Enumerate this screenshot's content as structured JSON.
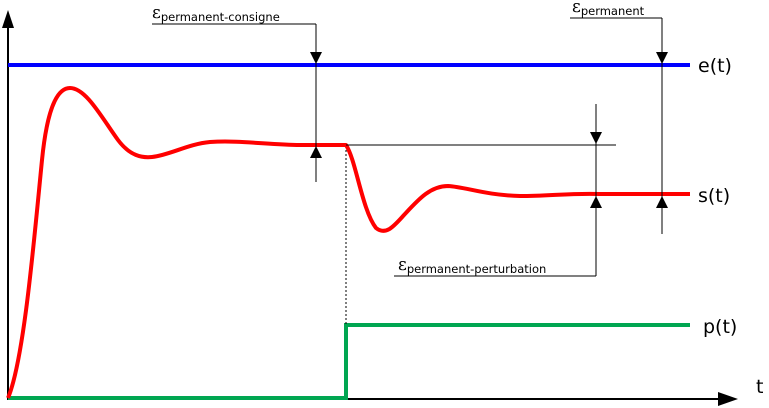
{
  "signals": {
    "e": {
      "label": "e(t)",
      "color": "#0000ff"
    },
    "s": {
      "label": "s(t)",
      "color": "#ff0000"
    },
    "p": {
      "label": "p(t)",
      "color": "#00a651"
    }
  },
  "axis": {
    "time_label": "t",
    "color": "#000000"
  },
  "annotations": {
    "eps_consigne": {
      "symbol": "ε",
      "sub": "permanent-consigne"
    },
    "eps_permanent": {
      "symbol": "ε",
      "sub": "permanent"
    },
    "eps_perturbation": {
      "symbol": "ε",
      "sub": "permanent-perturbation"
    }
  }
}
